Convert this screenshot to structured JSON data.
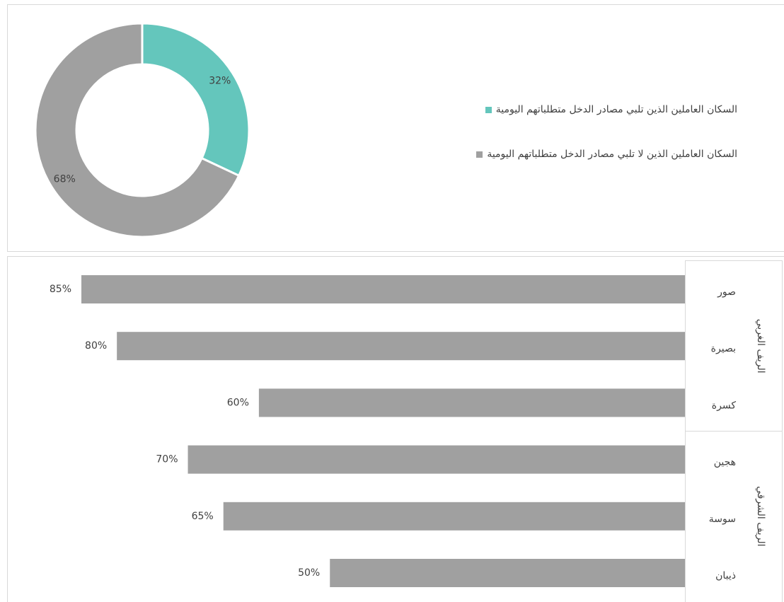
{
  "chart_data": [
    {
      "type": "donut",
      "categories": [
        "السكان العاملين الذين تلبي مصادر الدخل متطلباتهم اليومية",
        "السكان العاملين الذين لا تلبي مصادر الدخل متطلباتهم اليومية"
      ],
      "values": [
        32,
        68
      ],
      "value_labels": [
        "32%",
        "68%"
      ],
      "colors": [
        "#64c6bc",
        "#a0a0a0"
      ],
      "legend": "right"
    },
    {
      "type": "bar",
      "orientation": "horizontal",
      "color": "#a0a0a0",
      "groups": [
        {
          "name": "الريف الغربي",
          "categories": [
            "صور",
            "بصيرة",
            "كسرة"
          ],
          "values": [
            85,
            80,
            60
          ],
          "value_labels": [
            "85%",
            "80%",
            "60%"
          ]
        },
        {
          "name": "الريف الشرقي",
          "categories": [
            "هجين",
            "سوسة",
            "ذيبان"
          ],
          "values": [
            70,
            65,
            50
          ],
          "value_labels": [
            "70%",
            "65%",
            "50%"
          ]
        }
      ]
    }
  ]
}
